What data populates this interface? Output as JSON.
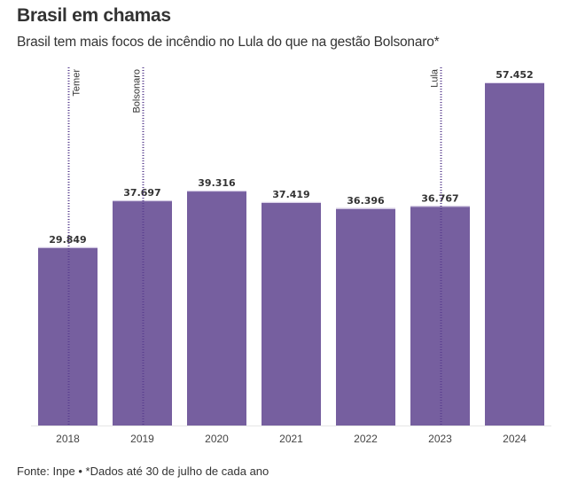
{
  "header": {
    "title": "Brasil em chamas",
    "subtitle": "Brasil tem mais focos de incêndio no Lula do que na gestão Bolsonaro*"
  },
  "footer": {
    "note": "Fonte: Inpe • *Dados até 30 de julho de cada ano"
  },
  "colors": {
    "bar": "#765f9f",
    "marker_line": "#5a3f8f",
    "axis": "#e6e6e6",
    "text": "#333333"
  },
  "chart_data": {
    "type": "bar",
    "title": "Brasil em chamas",
    "subtitle": "Brasil tem mais focos de incêndio no Lula do que na gestão Bolsonaro*",
    "xlabel": "",
    "ylabel": "",
    "categories": [
      "2018",
      "2019",
      "2020",
      "2021",
      "2022",
      "2023",
      "2024"
    ],
    "values": [
      29849,
      37697,
      39316,
      37419,
      36396,
      36767,
      57452
    ],
    "value_labels": [
      "29.849",
      "37.697",
      "39.316",
      "37.419",
      "36.396",
      "36.767",
      "57.452"
    ],
    "ylim": [
      0,
      57452
    ],
    "grid": false,
    "annotations": [
      {
        "category": "2018",
        "label": "Temer"
      },
      {
        "category": "2019",
        "label": "Bolsonaro"
      },
      {
        "category": "2023",
        "label": "Lula"
      }
    ]
  }
}
